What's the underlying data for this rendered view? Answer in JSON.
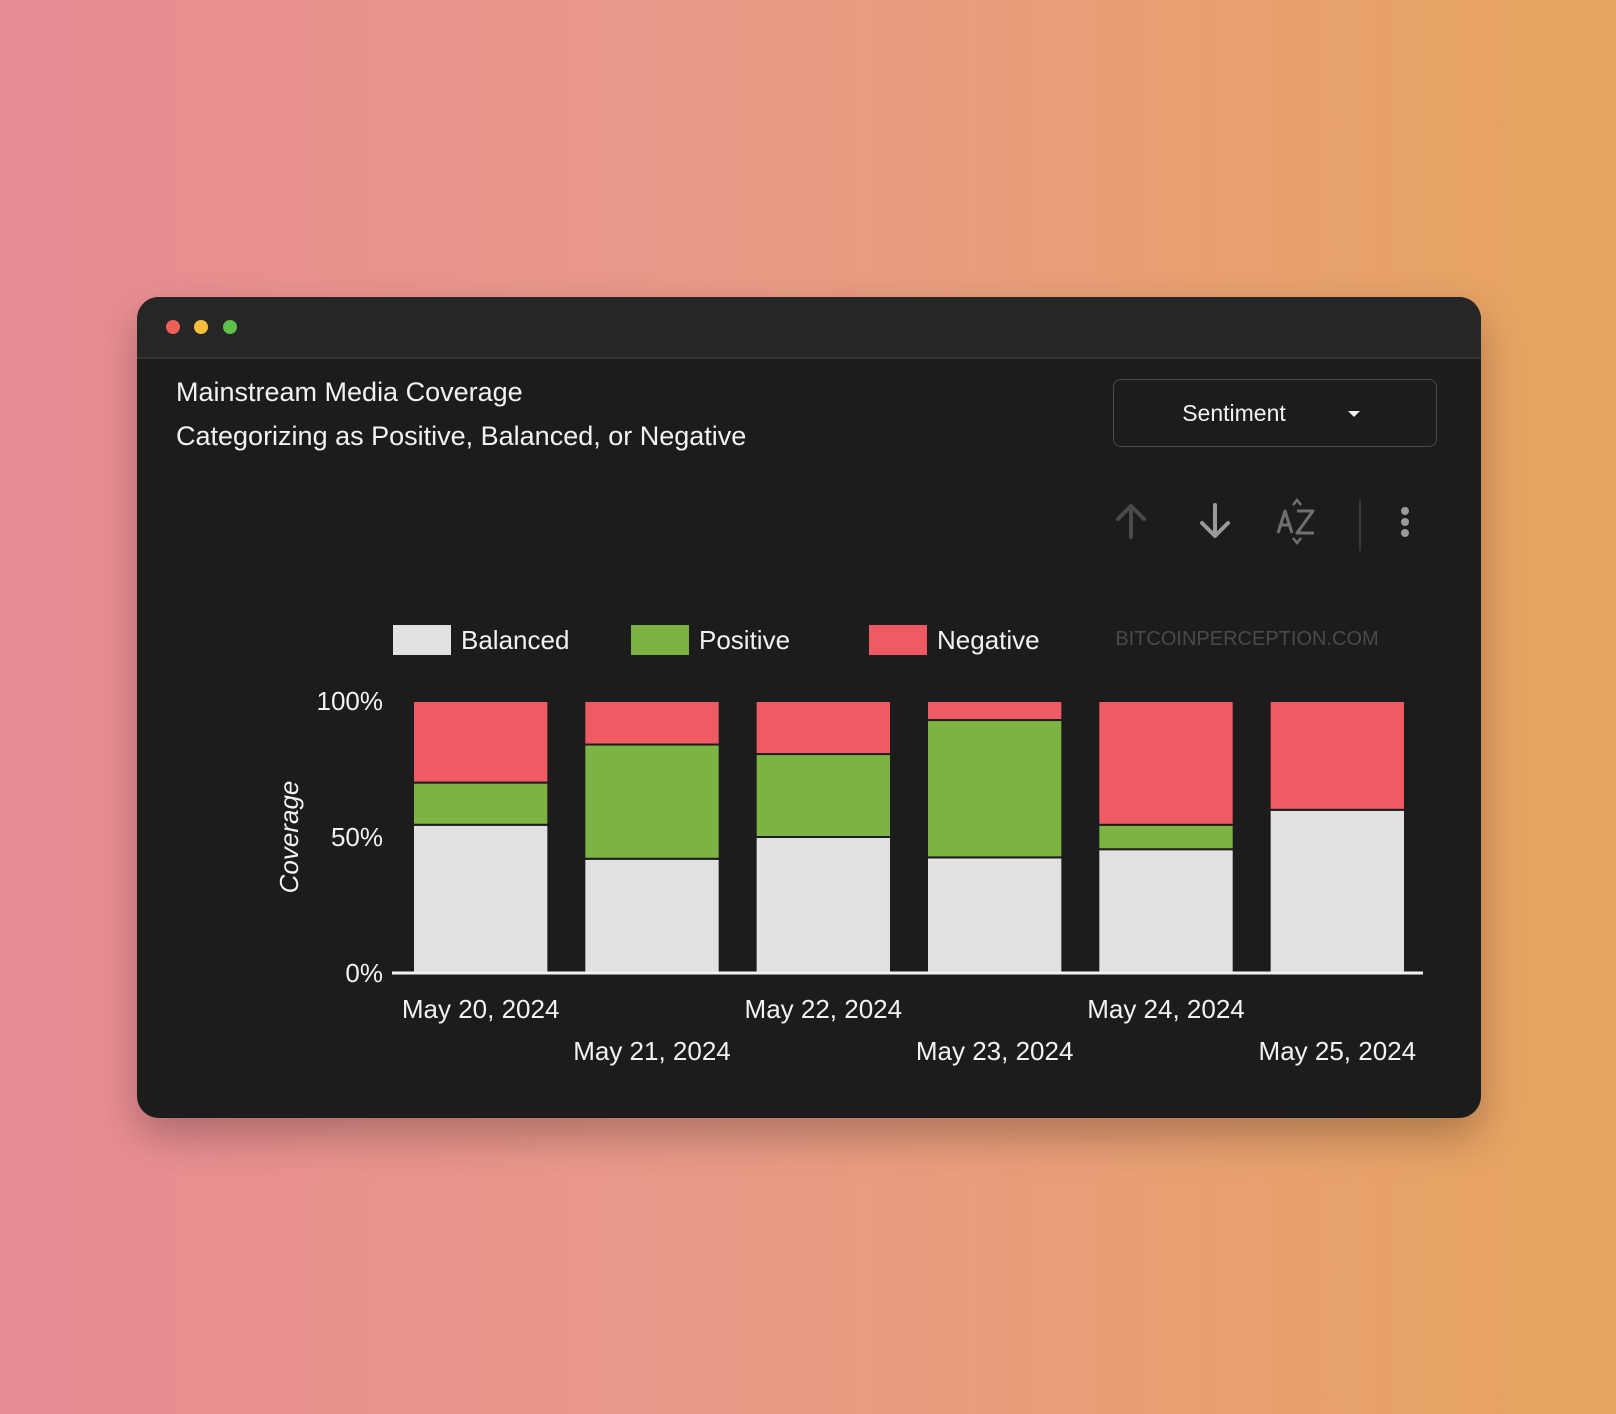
{
  "window": {
    "title": "Mainstream Media Coverage",
    "subtitle": "Categorizing as Positive, Balanced, or Negative"
  },
  "dropdown": {
    "label": "Sentiment"
  },
  "toolbar": {
    "icons": [
      "arrow-up-icon",
      "arrow-down-icon",
      "sort-az-icon",
      "more-vertical-icon"
    ]
  },
  "watermark": "BITCOINPERCEPTION.COM",
  "colors": {
    "Balanced": "#e1e1e1",
    "Positive": "#7cb342",
    "Negative": "#ef5a63",
    "panel": "#1c1c1c"
  },
  "chart_data": {
    "type": "bar",
    "stacked": true,
    "ylabel": "Coverage",
    "xlabel": "",
    "ylim": [
      0,
      100
    ],
    "yticks": [
      "0%",
      "50%",
      "100%"
    ],
    "categories": [
      "May 20, 2024",
      "May 21, 2024",
      "May 22, 2024",
      "May 23, 2024",
      "May 24, 2024",
      "May 25, 2024"
    ],
    "series": [
      {
        "name": "Balanced",
        "values": [
          54.5,
          42,
          50,
          42.5,
          45.5,
          60
        ]
      },
      {
        "name": "Positive",
        "values": [
          15.5,
          42,
          30.5,
          50.5,
          9,
          0
        ]
      },
      {
        "name": "Negative",
        "values": [
          30,
          16,
          19.5,
          7,
          45.5,
          40
        ]
      }
    ],
    "legend": "top-left"
  }
}
